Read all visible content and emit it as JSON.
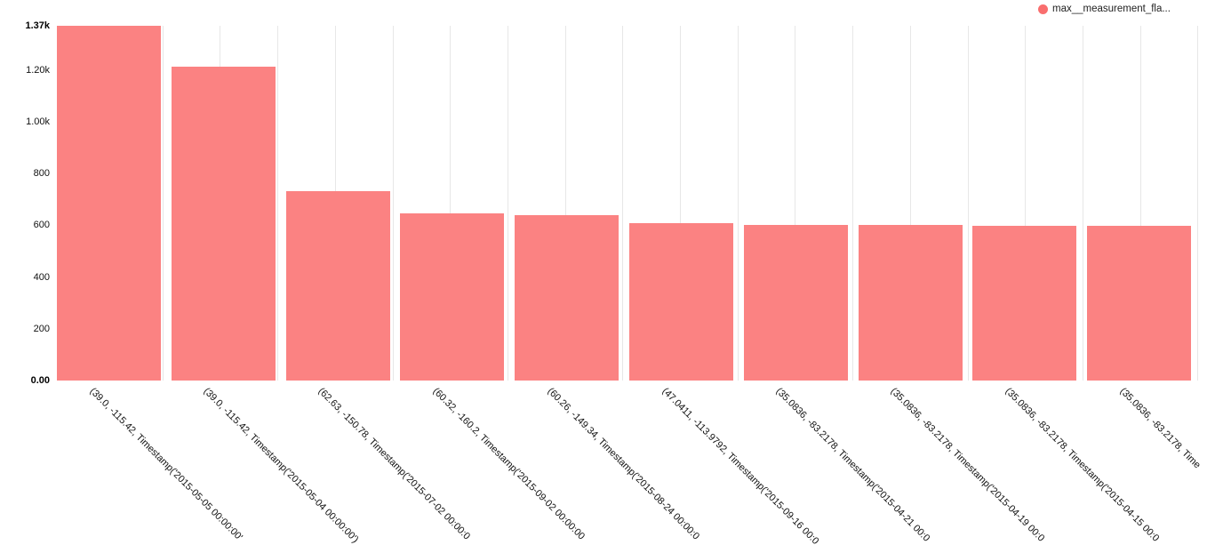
{
  "legend": {
    "label": "max__measurement_fla...",
    "marker_color": "#f96e6e"
  },
  "chart_data": {
    "type": "bar",
    "title": "",
    "xlabel": "",
    "ylabel": "",
    "legend_position": "top-right",
    "series_name": "max__measurement_fla...",
    "bar_color": "#fb8282",
    "grid": "vertical-only",
    "gridline_color": "#e7e7e7",
    "ylim": [
      0,
      1370
    ],
    "categories": [
      "(39.0, -115.42, Timestamp('2015-05-05 00:00:00'",
      "(39.0, -115.42, Timestamp('2015-05-04 00:00:00')",
      "(62.63, -150.78, Timestamp('2015-07-02 00:00:0",
      "(60.32, -160.2, Timestamp('2015-09-02 00:00:00",
      "(60.26, -149.34, Timestamp('2015-08-24 00:00:0",
      "(47.0411, -113.9792, Timestamp('2015-09-16 00:0",
      "(35.0836, -83.2178, Timestamp('2015-04-21 00:0",
      "(35.0836, -83.2178, Timestamp('2015-04-19 00:0",
      "(35.0836, -83.2178, Timestamp('2015-04-15 00:0",
      "(35.0836, -83.2178, Time"
    ],
    "values": [
      1370,
      1212,
      730,
      645,
      638,
      607,
      601,
      600,
      599,
      598
    ],
    "y_ticks": [
      {
        "value": 1370,
        "label": "1.37k",
        "bold": true
      },
      {
        "value": 1200,
        "label": "1.20k",
        "bold": false
      },
      {
        "value": 1000,
        "label": "1.00k",
        "bold": false
      },
      {
        "value": 800,
        "label": "800",
        "bold": false
      },
      {
        "value": 600,
        "label": "600",
        "bold": false
      },
      {
        "value": 400,
        "label": "400",
        "bold": false
      },
      {
        "value": 200,
        "label": "200",
        "bold": false
      },
      {
        "value": 0,
        "label": "0.00",
        "bold": true
      }
    ]
  }
}
